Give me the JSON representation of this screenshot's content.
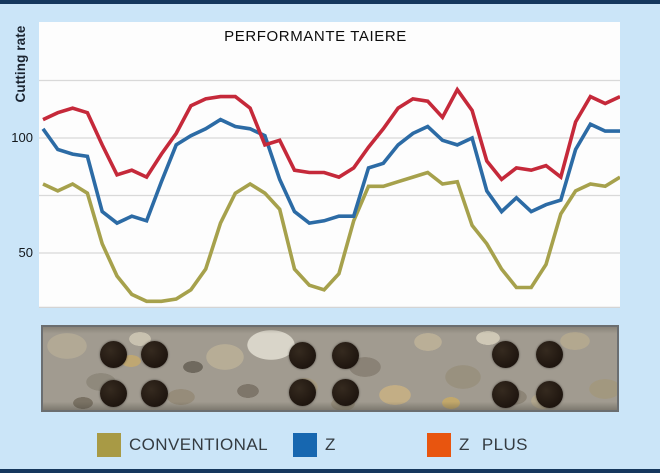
{
  "chart_data": {
    "type": "line",
    "title": "PERFORMANTE TAIERE",
    "ylabel": "Cutting rate",
    "xlabel": "",
    "ylim": [
      26,
      150
    ],
    "grid": "horizontal",
    "gridline_values": [
      125,
      100,
      75,
      50
    ],
    "yticks": [
      {
        "value": 100,
        "label": "100"
      },
      {
        "value": 50,
        "label": "50"
      }
    ],
    "x_count": 40,
    "legend_position": "bottom",
    "series": [
      {
        "name": "CONVENTIONAL",
        "line_color": "#a6a14c",
        "values": [
          80,
          77,
          80,
          76,
          54,
          40,
          32,
          29,
          29,
          30,
          34,
          43,
          63,
          76,
          80,
          76,
          69,
          43,
          36,
          34,
          41,
          64,
          79,
          79,
          81,
          83,
          85,
          80,
          81,
          62,
          54,
          43,
          35,
          35,
          45,
          67,
          77,
          80,
          79,
          83
        ]
      },
      {
        "name": "Z",
        "line_color": "#2c6ba5",
        "values": [
          104,
          95,
          93,
          92,
          68,
          63,
          66,
          64,
          81,
          97,
          101,
          104,
          108,
          105,
          104,
          101,
          82,
          68,
          63,
          64,
          66,
          66,
          87,
          89,
          97,
          102,
          105,
          99,
          97,
          100,
          77,
          68,
          74,
          68,
          71,
          73,
          95,
          106,
          103,
          103
        ]
      },
      {
        "name": "Z PLUS",
        "line_color": "#c5293a",
        "values": [
          108,
          111,
          113,
          111,
          97,
          84,
          86,
          83,
          93,
          102,
          114,
          117,
          118,
          118,
          113,
          97,
          99,
          86,
          85,
          85,
          83,
          87,
          96,
          104,
          113,
          117,
          116,
          109,
          121,
          112,
          90,
          82,
          87,
          86,
          88,
          83,
          107,
          118,
          115,
          118
        ]
      }
    ]
  },
  "legend": {
    "items": [
      {
        "label": "CONVENTIONAL",
        "swatch_color": "#a89a45"
      },
      {
        "label": "Z",
        "swatch_color": "#1767b0"
      },
      {
        "label": "Z PLUS",
        "swatch_color": "#e8550f"
      }
    ]
  },
  "photo": {
    "description": "concrete core strip with three groups of four drilled holes",
    "hole_color": "#241b14",
    "hole_diameter": 27,
    "holes": [
      [
        70,
        27
      ],
      [
        111,
        27
      ],
      [
        70,
        66
      ],
      [
        111,
        66
      ],
      [
        259,
        28
      ],
      [
        302,
        28
      ],
      [
        259,
        65
      ],
      [
        302,
        65
      ],
      [
        462,
        27
      ],
      [
        506,
        27
      ],
      [
        462,
        67
      ],
      [
        506,
        67
      ]
    ]
  },
  "frame": {
    "background": "#cbe5f8",
    "bar_color": "#15375d"
  }
}
